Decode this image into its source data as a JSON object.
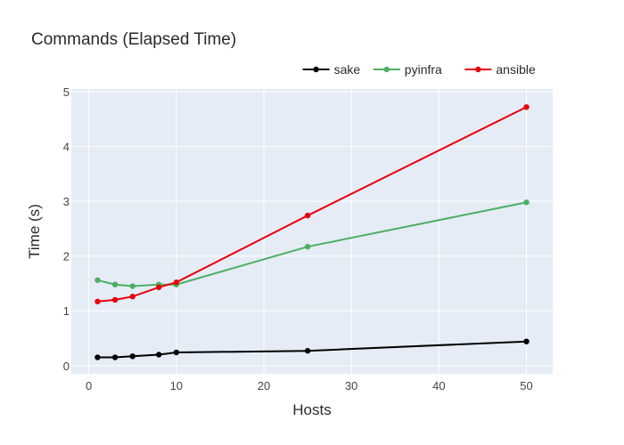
{
  "chart_data": {
    "type": "line",
    "title": "Commands (Elapsed Time)",
    "xlabel": "Hosts",
    "ylabel": "Time (s)",
    "x": [
      1,
      3,
      5,
      8,
      10,
      25,
      50
    ],
    "xlim": [
      -2,
      53
    ],
    "ylim": [
      -0.15,
      5.05
    ],
    "xticks": [
      0,
      10,
      20,
      30,
      40,
      50
    ],
    "yticks": [
      0,
      1,
      2,
      3,
      4,
      5
    ],
    "grid": true,
    "legend": "top-right",
    "series": [
      {
        "name": "sake",
        "color": "#000000",
        "values": [
          0.15,
          0.15,
          0.17,
          0.2,
          0.24,
          0.27,
          0.44
        ]
      },
      {
        "name": "pyinfra",
        "color": "#4caf63",
        "values": [
          1.56,
          1.48,
          1.45,
          1.48,
          1.48,
          2.17,
          2.98
        ]
      },
      {
        "name": "ansible",
        "color": "#e8000b",
        "values": [
          1.17,
          1.2,
          1.26,
          1.43,
          1.52,
          2.74,
          4.72
        ]
      }
    ]
  }
}
